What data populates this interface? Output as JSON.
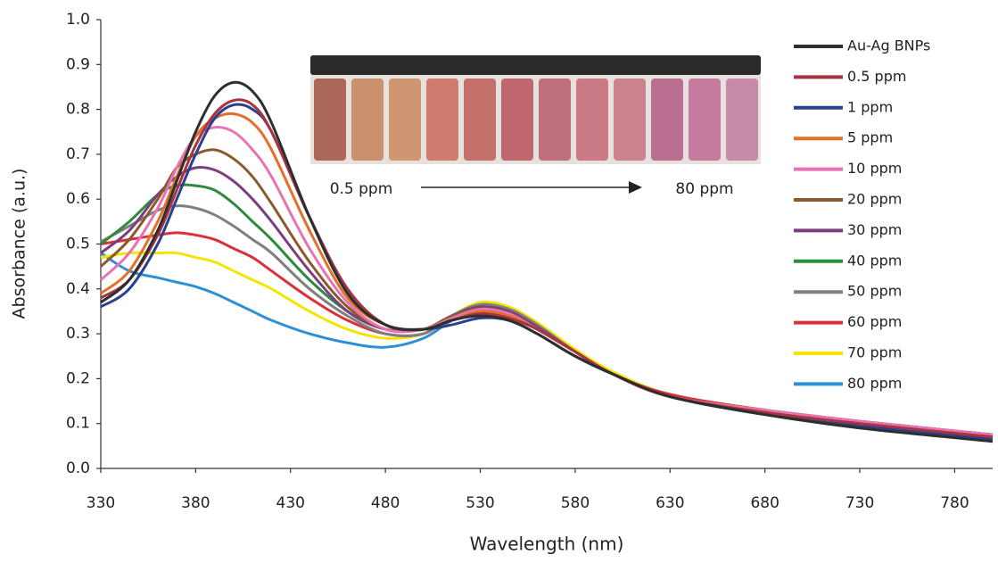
{
  "chart_data": {
    "type": "line",
    "x_label": "Wavelength (nm)",
    "y_label": "Absorbance (a.u.)",
    "x": [
      330,
      345,
      360,
      370,
      380,
      390,
      400,
      410,
      420,
      440,
      460,
      480,
      500,
      515,
      530,
      545,
      560,
      580,
      600,
      630,
      680,
      730,
      800
    ],
    "xlim": [
      330,
      800
    ],
    "xticks": [
      330,
      380,
      430,
      480,
      530,
      580,
      630,
      680,
      730,
      780
    ],
    "ylim": [
      0,
      1
    ],
    "yticks": [
      {
        "value": 0,
        "label": "0.0"
      },
      0.1,
      0.2,
      0.3,
      0.4,
      0.5,
      0.6,
      0.7,
      0.8,
      0.9,
      {
        "value": 1,
        "label": "1.0"
      }
    ],
    "grid": false,
    "legend": "right",
    "annotations": [
      "0.5 ppm",
      "80 ppm"
    ],
    "series": [
      {
        "name": "Au-Ag BNPs",
        "color": "#2b2f2e",
        "values": [
          0.37,
          0.42,
          0.53,
          0.64,
          0.75,
          0.83,
          0.86,
          0.84,
          0.77,
          0.56,
          0.39,
          0.32,
          0.31,
          0.33,
          0.34,
          0.33,
          0.3,
          0.25,
          0.21,
          0.16,
          0.12,
          0.09,
          0.06
        ]
      },
      {
        "name": "0.5 ppm",
        "color": "#a8343f",
        "values": [
          0.38,
          0.42,
          0.52,
          0.62,
          0.72,
          0.79,
          0.82,
          0.81,
          0.75,
          0.56,
          0.4,
          0.32,
          0.31,
          0.33,
          0.345,
          0.335,
          0.31,
          0.26,
          0.21,
          0.16,
          0.125,
          0.1,
          0.07
        ]
      },
      {
        "name": "1 ppm",
        "color": "#2b3f8f",
        "values": [
          0.36,
          0.4,
          0.5,
          0.6,
          0.7,
          0.78,
          0.81,
          0.8,
          0.75,
          0.56,
          0.4,
          0.32,
          0.31,
          0.32,
          0.335,
          0.33,
          0.3,
          0.25,
          0.21,
          0.16,
          0.12,
          0.095,
          0.065
        ]
      },
      {
        "name": "5 ppm",
        "color": "#e2702a",
        "values": [
          0.39,
          0.44,
          0.55,
          0.65,
          0.74,
          0.78,
          0.79,
          0.77,
          0.71,
          0.53,
          0.38,
          0.32,
          0.31,
          0.33,
          0.35,
          0.34,
          0.31,
          0.26,
          0.21,
          0.16,
          0.125,
          0.1,
          0.07
        ]
      },
      {
        "name": "10 ppm",
        "color": "#e873b4",
        "values": [
          0.42,
          0.48,
          0.58,
          0.67,
          0.74,
          0.76,
          0.75,
          0.71,
          0.65,
          0.49,
          0.37,
          0.31,
          0.31,
          0.335,
          0.355,
          0.345,
          0.31,
          0.26,
          0.21,
          0.16,
          0.13,
          0.105,
          0.075
        ]
      },
      {
        "name": "20 ppm",
        "color": "#8b5a2b",
        "values": [
          0.45,
          0.51,
          0.6,
          0.67,
          0.7,
          0.71,
          0.69,
          0.65,
          0.59,
          0.46,
          0.36,
          0.31,
          0.31,
          0.34,
          0.355,
          0.345,
          0.31,
          0.26,
          0.21,
          0.16,
          0.13,
          0.105,
          0.075
        ]
      },
      {
        "name": "30 ppm",
        "color": "#7b3f7f",
        "values": [
          0.48,
          0.53,
          0.61,
          0.65,
          0.67,
          0.665,
          0.64,
          0.6,
          0.55,
          0.44,
          0.35,
          0.31,
          0.31,
          0.34,
          0.36,
          0.35,
          0.315,
          0.26,
          0.21,
          0.16,
          0.13,
          0.105,
          0.075
        ]
      },
      {
        "name": "40 ppm",
        "color": "#2e8b3e",
        "values": [
          0.5,
          0.55,
          0.61,
          0.63,
          0.63,
          0.62,
          0.59,
          0.55,
          0.51,
          0.42,
          0.35,
          0.31,
          0.31,
          0.34,
          0.36,
          0.35,
          0.315,
          0.26,
          0.21,
          0.16,
          0.125,
          0.1,
          0.07
        ]
      },
      {
        "name": "50 ppm",
        "color": "#7f7f7f",
        "values": [
          0.505,
          0.54,
          0.575,
          0.585,
          0.58,
          0.565,
          0.54,
          0.51,
          0.48,
          0.4,
          0.34,
          0.3,
          0.3,
          0.34,
          0.365,
          0.355,
          0.32,
          0.26,
          0.21,
          0.16,
          0.125,
          0.1,
          0.07
        ]
      },
      {
        "name": "60 ppm",
        "color": "#d9303a",
        "values": [
          0.5,
          0.51,
          0.52,
          0.525,
          0.52,
          0.51,
          0.49,
          0.47,
          0.44,
          0.38,
          0.33,
          0.3,
          0.3,
          0.34,
          0.365,
          0.355,
          0.32,
          0.26,
          0.21,
          0.165,
          0.13,
          0.105,
          0.075
        ]
      },
      {
        "name": "70 ppm",
        "color": "#f2e600",
        "values": [
          0.47,
          0.48,
          0.48,
          0.48,
          0.47,
          0.46,
          0.44,
          0.42,
          0.4,
          0.35,
          0.31,
          0.29,
          0.3,
          0.34,
          0.37,
          0.36,
          0.325,
          0.265,
          0.215,
          0.165,
          0.13,
          0.1,
          0.07
        ]
      },
      {
        "name": "80 ppm",
        "color": "#2f8fd6",
        "values": [
          0.48,
          0.44,
          0.425,
          0.415,
          0.405,
          0.39,
          0.37,
          0.35,
          0.33,
          0.3,
          0.28,
          0.27,
          0.29,
          0.33,
          0.36,
          0.355,
          0.32,
          0.26,
          0.21,
          0.16,
          0.125,
          0.1,
          0.065
        ]
      }
    ]
  }
}
